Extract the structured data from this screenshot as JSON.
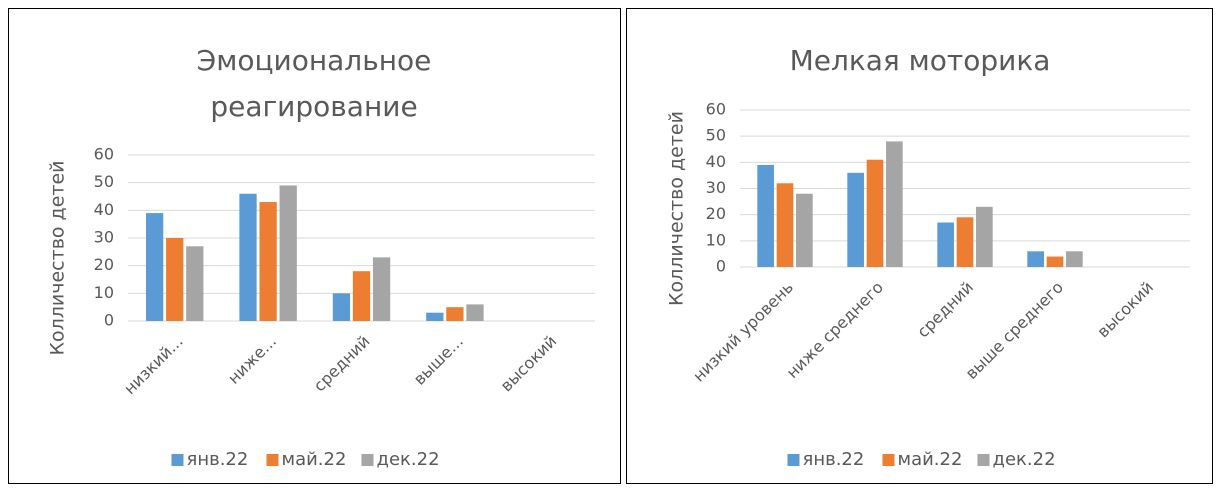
{
  "chart_data": [
    {
      "type": "bar",
      "title": "Эмоциональное реагирование",
      "y_label": "Колличество детей",
      "categories": [
        "низкий...",
        "ниже...",
        "средний",
        "выше...",
        "высокий"
      ],
      "series": [
        {
          "name": "янв.22",
          "color": "#5b9bd5",
          "values": [
            39,
            46,
            10,
            3,
            0
          ]
        },
        {
          "name": "май.22",
          "color": "#ed7d31",
          "values": [
            30,
            43,
            18,
            5,
            0
          ]
        },
        {
          "name": "дек.22",
          "color": "#a5a5a5",
          "values": [
            27,
            49,
            23,
            6,
            0
          ]
        }
      ],
      "ylim": [
        0,
        60
      ],
      "yticks": [
        0,
        10,
        20,
        30,
        40,
        50,
        60
      ],
      "grid": true,
      "legend": "bottom"
    },
    {
      "type": "bar",
      "title": "Мелкая моторика",
      "y_label": "Колличество детей",
      "categories": [
        "низкий уровень",
        "ниже среднего",
        "средний",
        "выше среднего",
        "высокий"
      ],
      "series": [
        {
          "name": "янв.22",
          "color": "#5b9bd5",
          "values": [
            39,
            36,
            17,
            6,
            0
          ]
        },
        {
          "name": "май.22",
          "color": "#ed7d31",
          "values": [
            32,
            41,
            19,
            4,
            0
          ]
        },
        {
          "name": "дек.22",
          "color": "#a5a5a5",
          "values": [
            28,
            48,
            23,
            6,
            0
          ]
        }
      ],
      "ylim": [
        0,
        60
      ],
      "yticks": [
        0,
        10,
        20,
        30,
        40,
        50,
        60
      ],
      "grid": true,
      "legend": "bottom"
    }
  ]
}
